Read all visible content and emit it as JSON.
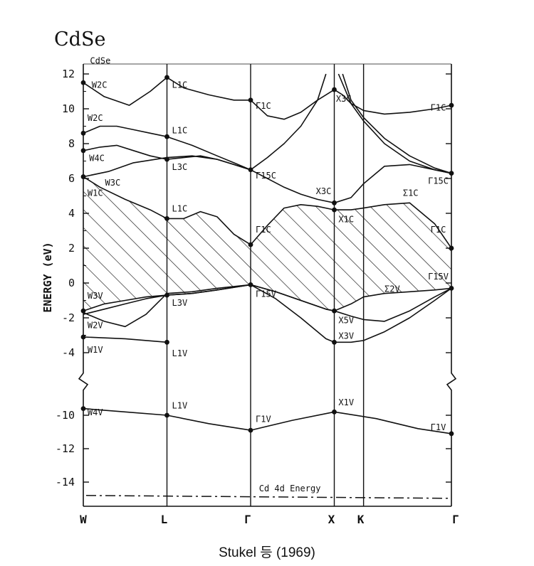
{
  "figure": {
    "title": "CdSe",
    "caption": "Stukel 등 (1969)"
  },
  "chart_data": {
    "type": "line",
    "title": "CdSe",
    "ylabel": "ENERGY (eV)",
    "xlabel": "",
    "k_points": [
      "W",
      "L",
      "Γ",
      "X",
      "K",
      "Γ"
    ],
    "k_positions": [
      0,
      1,
      2,
      3,
      3.35,
      4.4
    ],
    "ylim": [
      -15.5,
      12.3
    ],
    "y_ticks_upper": [
      12,
      10,
      8,
      6,
      4,
      2,
      0,
      -2,
      -4
    ],
    "y_ticks_lower": [
      -10,
      -12,
      -14
    ],
    "axis_break": {
      "from": -4.6,
      "to": -9.0
    },
    "cd4d_energy": -14.8,
    "cd4d_label": "Cd 4d Energy",
    "series": [
      {
        "x": [
          0,
          0.25,
          0.55,
          0.8,
          1,
          1.2,
          1.5,
          1.8,
          2,
          2.2,
          2.4,
          2.6,
          2.8,
          3,
          3.1,
          3.2,
          3.35,
          3.6,
          3.9,
          4.2,
          4.4
        ],
        "y": [
          11.5,
          10.7,
          10.2,
          11.0,
          11.8,
          11.2,
          10.8,
          10.5,
          10.5,
          9.6,
          9.4,
          9.8,
          10.5,
          11.1,
          10.8,
          10.3,
          9.9,
          9.7,
          9.8,
          10.0,
          10.2
        ]
      },
      {
        "x": [
          0,
          0.2,
          0.4,
          0.6,
          0.8,
          1,
          1.3,
          1.6,
          1.8,
          2,
          2.2,
          2.4,
          2.6,
          2.8,
          2.9
        ],
        "y": [
          8.6,
          9.0,
          9.0,
          8.8,
          8.6,
          8.4,
          7.9,
          7.3,
          6.9,
          6.5,
          7.2,
          8.0,
          9.0,
          10.5,
          12.0
        ]
      },
      {
        "x": [
          3.1,
          3.2,
          3.35,
          3.6,
          3.9,
          4.2,
          4.4
        ],
        "y": [
          12.0,
          10.5,
          9.5,
          8.3,
          7.3,
          6.6,
          6.3
        ]
      },
      {
        "x": [
          3.05,
          3.2,
          3.35,
          3.6,
          3.9,
          4.2,
          4.4
        ],
        "y": [
          12.0,
          10.3,
          9.3,
          8.0,
          7.0,
          6.5,
          6.3
        ]
      },
      {
        "x": [
          0,
          0.2,
          0.4,
          0.6,
          0.8,
          1,
          1.2,
          1.4,
          1.6,
          1.8,
          2,
          2.2,
          2.4,
          2.6,
          2.8,
          3,
          3.2,
          3.35,
          3.6,
          3.9,
          4.2,
          4.4
        ],
        "y": [
          7.6,
          7.8,
          7.9,
          7.6,
          7.3,
          7.1,
          7.2,
          7.3,
          7.1,
          6.8,
          6.5,
          6.0,
          5.5,
          5.1,
          4.8,
          4.6,
          4.9,
          5.7,
          6.7,
          6.8,
          6.5,
          6.3
        ]
      },
      {
        "x": [
          0,
          0.3,
          0.6,
          1,
          1.3,
          1.6,
          1.8,
          2
        ],
        "y": [
          6.1,
          6.4,
          6.9,
          7.2,
          7.3,
          7.1,
          6.8,
          6.5
        ]
      },
      {
        "x": [
          0,
          0.2,
          0.5,
          0.8,
          1,
          1.2,
          1.4,
          1.6,
          1.8,
          2,
          2.2,
          2.4,
          2.6,
          2.8,
          3,
          3.2,
          3.35,
          3.6,
          3.9,
          4.2,
          4.4
        ],
        "y": [
          6.1,
          5.5,
          4.8,
          4.2,
          3.7,
          3.7,
          4.1,
          3.8,
          2.8,
          2.2,
          3.3,
          4.3,
          4.5,
          4.4,
          4.2,
          4.2,
          4.3,
          4.5,
          4.6,
          3.4,
          2.0
        ]
      },
      {
        "x": [
          0,
          0.25,
          0.5,
          0.75,
          1,
          1.3,
          1.6,
          2,
          2.3,
          2.6,
          2.9,
          3,
          3.2,
          3.35,
          3.6,
          3.9,
          4.2,
          4.4
        ],
        "y": [
          -1.6,
          -1.2,
          -1.0,
          -0.8,
          -0.7,
          -0.6,
          -0.4,
          -0.1,
          -0.5,
          -1.0,
          -1.5,
          -1.6,
          -1.2,
          -0.8,
          -0.6,
          -0.5,
          -0.4,
          -0.3
        ]
      },
      {
        "x": [
          0,
          0.25,
          0.5,
          0.75,
          1,
          1.3,
          1.6,
          2,
          2.3,
          2.6,
          2.9,
          3,
          3.2,
          3.35,
          3.6,
          3.9,
          4.2,
          4.4
        ],
        "y": [
          -1.8,
          -1.5,
          -1.2,
          -0.9,
          -0.7,
          -0.6,
          -0.4,
          -0.1,
          -0.5,
          -1.0,
          -1.5,
          -1.6,
          -1.9,
          -2.1,
          -2.2,
          -1.6,
          -0.8,
          -0.3
        ]
      },
      {
        "x": [
          0,
          0.25,
          0.5,
          0.75,
          1,
          1.3,
          1.6,
          2,
          2.3,
          2.6,
          2.9,
          3,
          3.2,
          3.35,
          3.6,
          3.9,
          4.2,
          4.4
        ],
        "y": [
          -1.7,
          -2.2,
          -2.5,
          -1.8,
          -0.6,
          -0.5,
          -0.3,
          -0.1,
          -0.9,
          -2.0,
          -3.2,
          -3.4,
          -3.4,
          -3.3,
          -2.8,
          -2.0,
          -1.0,
          -0.3
        ]
      },
      {
        "x": [
          0,
          0.5,
          1
        ],
        "y": [
          -3.1,
          -3.2,
          -3.4
        ]
      },
      {
        "x": [
          0,
          0.5,
          1,
          1.5,
          2,
          2.5,
          3,
          3.5,
          4,
          4.4
        ],
        "y": [
          -9.6,
          -9.8,
          -10.0,
          -10.5,
          -10.9,
          -10.3,
          -9.8,
          -10.2,
          -10.8,
          -11.1
        ]
      }
    ],
    "valence_fill": {
      "upper_x": [
        0,
        0.2,
        0.5,
        0.8,
        1,
        1.2,
        1.4,
        1.6,
        1.8,
        2,
        2.2,
        2.4,
        2.6,
        2.8,
        3,
        3.2,
        3.35,
        3.6,
        3.9,
        4.2,
        4.4
      ],
      "upper_y": [
        6.1,
        5.5,
        4.8,
        4.2,
        3.7,
        3.7,
        4.1,
        3.8,
        2.8,
        2.2,
        3.3,
        4.3,
        4.5,
        4.4,
        4.2,
        4.2,
        4.3,
        4.5,
        4.6,
        3.4,
        2.0
      ],
      "lower_x": [
        0,
        0.25,
        0.5,
        0.75,
        1,
        1.3,
        1.6,
        2,
        2.3,
        2.6,
        2.9,
        3,
        3.2,
        3.35,
        3.6,
        3.9,
        4.2,
        4.4
      ],
      "lower_y": [
        -1.6,
        -1.2,
        -1.0,
        -0.8,
        -0.7,
        -0.6,
        -0.4,
        -0.1,
        -0.5,
        -1.0,
        -1.5,
        -1.6,
        -1.2,
        -0.8,
        -0.6,
        -0.5,
        -0.4,
        -0.3
      ]
    },
    "points": [
      {
        "x": 0,
        "y": 11.5
      },
      {
        "x": 0,
        "y": 8.6
      },
      {
        "x": 0,
        "y": 7.6
      },
      {
        "x": 0,
        "y": 6.1
      },
      {
        "x": 0,
        "y": -1.6
      },
      {
        "x": 0,
        "y": -3.1
      },
      {
        "x": 0,
        "y": -9.6
      },
      {
        "x": 1,
        "y": 11.8
      },
      {
        "x": 1,
        "y": 8.4
      },
      {
        "x": 1,
        "y": 7.1
      },
      {
        "x": 1,
        "y": 3.7
      },
      {
        "x": 1,
        "y": -0.7
      },
      {
        "x": 1,
        "y": -3.4
      },
      {
        "x": 1,
        "y": -10.0
      },
      {
        "x": 2,
        "y": 10.5
      },
      {
        "x": 2,
        "y": 6.5
      },
      {
        "x": 2,
        "y": 2.2
      },
      {
        "x": 2,
        "y": -0.1
      },
      {
        "x": 2,
        "y": -10.9
      },
      {
        "x": 3,
        "y": 11.1
      },
      {
        "x": 3,
        "y": 4.6
      },
      {
        "x": 3,
        "y": 4.2
      },
      {
        "x": 3,
        "y": -1.6
      },
      {
        "x": 3,
        "y": -3.4
      },
      {
        "x": 3,
        "y": -9.8
      },
      {
        "x": 4.4,
        "y": 10.2
      },
      {
        "x": 4.4,
        "y": 6.3
      },
      {
        "x": 4.4,
        "y": 2.0
      },
      {
        "x": 4.4,
        "y": -0.3
      },
      {
        "x": 4.4,
        "y": -11.1
      }
    ],
    "annotations": [
      {
        "text": "CdSe",
        "x": 0.08,
        "y": 12.6
      },
      {
        "text": "W2C",
        "x": 0.1,
        "y": 11.2
      },
      {
        "text": "W2C",
        "x": 0.05,
        "y": 9.3
      },
      {
        "text": "W4C",
        "x": 0.07,
        "y": 7.0
      },
      {
        "text": "W3C",
        "x": 0.26,
        "y": 5.6
      },
      {
        "text": "W1C",
        "x": 0.05,
        "y": 5.0
      },
      {
        "text": "W3V",
        "x": 0.05,
        "y": -0.9
      },
      {
        "text": "W2V",
        "x": 0.05,
        "y": -2.6
      },
      {
        "text": "W1V",
        "x": 0.05,
        "y": -4.0
      },
      {
        "text": "W4V",
        "x": 0.05,
        "y": -10.0
      },
      {
        "text": "L1C",
        "x": 1.06,
        "y": 11.2
      },
      {
        "text": "L1C",
        "x": 1.06,
        "y": 8.6
      },
      {
        "text": "L3C",
        "x": 1.06,
        "y": 6.5
      },
      {
        "text": "L1C",
        "x": 1.06,
        "y": 4.1
      },
      {
        "text": "L3V",
        "x": 1.06,
        "y": -1.3
      },
      {
        "text": "L1V",
        "x": 1.06,
        "y": -4.2
      },
      {
        "text": "L1V",
        "x": 1.06,
        "y": -9.6
      },
      {
        "text": "Γ1C",
        "x": 2.06,
        "y": 10.0
      },
      {
        "text": "Γ15C",
        "x": 2.06,
        "y": 6.0
      },
      {
        "text": "Γ1C",
        "x": 2.06,
        "y": 2.9
      },
      {
        "text": "Γ15V",
        "x": 2.06,
        "y": -0.8
      },
      {
        "text": "Γ1V",
        "x": 2.06,
        "y": -10.4
      },
      {
        "text": "X3C",
        "x": 3.02,
        "y": 10.4
      },
      {
        "text": "X3C",
        "x": 2.78,
        "y": 5.1
      },
      {
        "text": "X1C",
        "x": 3.05,
        "y": 3.5
      },
      {
        "text": "X5V",
        "x": 3.05,
        "y": -2.3
      },
      {
        "text": "X3V",
        "x": 3.05,
        "y": -3.2
      },
      {
        "text": "X1V",
        "x": 3.05,
        "y": -9.4
      },
      {
        "text": "Σ1C",
        "x": 3.82,
        "y": 5.0
      },
      {
        "text": "Σ2V",
        "x": 3.6,
        "y": -0.5
      },
      {
        "text": "Γ1C",
        "x": 4.15,
        "y": 9.9
      },
      {
        "text": "Γ15C",
        "x": 4.12,
        "y": 5.7
      },
      {
        "text": "Γ1C",
        "x": 4.15,
        "y": 2.9
      },
      {
        "text": "Γ15V",
        "x": 4.12,
        "y": 0.2
      },
      {
        "text": "Γ1V",
        "x": 4.15,
        "y": -10.9
      }
    ]
  }
}
